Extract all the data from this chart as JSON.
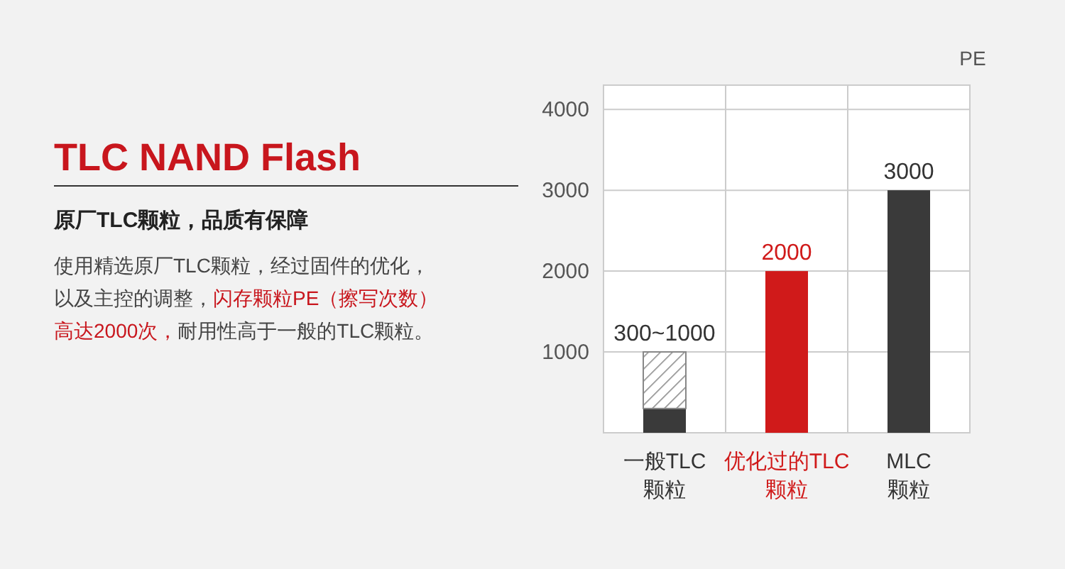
{
  "chart_data": {
    "type": "bar",
    "title": "TLC NAND Flash",
    "subtitle": "原厂TLC颗粒，品质有保障",
    "annotations": [
      "使用精选原厂TLC颗粒，经过固件的优化，以及主控的调整，",
      "闪存颗粒PE（擦写次数）高达2000次，",
      "耐用性高于一般的TLC颗粒。"
    ],
    "ylabel": "PE",
    "categories": [
      "一般TLC颗粒",
      "优化过的TLC颗粒",
      "MLC颗粒"
    ],
    "stacked": true,
    "series": [
      {
        "colors": [
          "#3a3a3a",
          "#d01a1a",
          "#3a3a3a"
        ],
        "values": [
          300,
          2000,
          3000
        ]
      },
      {
        "color": "#888888",
        "values": [
          700,
          null,
          null
        ]
      }
    ],
    "totals": [
      "300~1000",
      "2000",
      "3000"
    ],
    "ylim": [
      0,
      4300
    ],
    "yticks": [
      1000,
      2000,
      3000,
      4000
    ],
    "grid": "y"
  }
}
